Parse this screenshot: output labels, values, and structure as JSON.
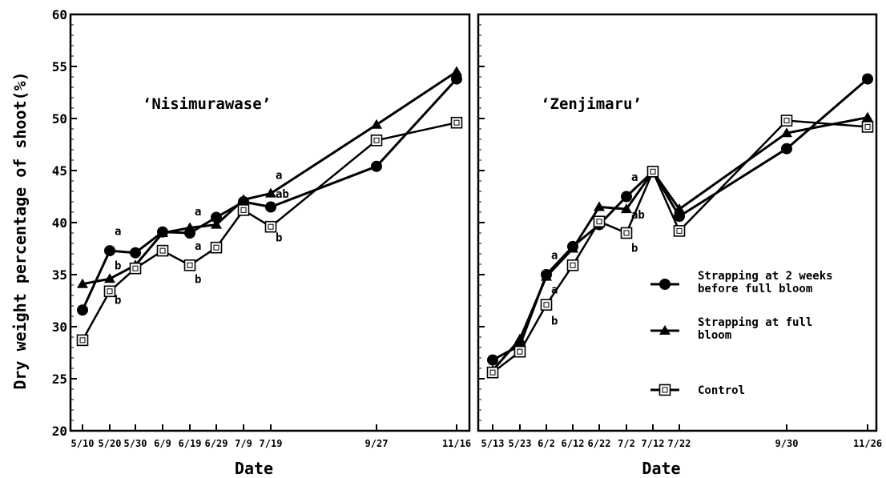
{
  "ylabel": "Dry weight percentage of shoot(%)",
  "chart_data": [
    {
      "type": "line",
      "title": "‘Nisimurawase’",
      "xlabel": "Date",
      "ylabel": "Dry weight percentage of shoot(%)",
      "ylim": [
        20,
        60
      ],
      "yticks": [
        20,
        25,
        30,
        35,
        40,
        45,
        50,
        55,
        60
      ],
      "xticks": [
        "5/10",
        "5/20",
        "5/30",
        "6/9",
        "6/19",
        "6/29",
        "7/9",
        "7/19",
        "9/27",
        "11/16"
      ],
      "x": [
        "5/10",
        "5/20",
        "5/30",
        "6/9",
        "6/19",
        "6/29",
        "7/9",
        "7/19",
        "9/27",
        "11/16"
      ],
      "series": [
        {
          "name": "Strapping at 2 weeks before full bloom",
          "marker": "circle",
          "values": [
            31.6,
            37.3,
            37.1,
            39.1,
            39.0,
            40.5,
            42.0,
            41.5,
            45.4,
            53.8
          ]
        },
        {
          "name": "Strapping at full bloom",
          "marker": "triangle",
          "values": [
            34.1,
            34.6,
            35.9,
            39.0,
            39.5,
            39.8,
            42.2,
            42.8,
            49.4,
            54.5
          ]
        },
        {
          "name": "Control",
          "marker": "square",
          "values": [
            28.7,
            33.4,
            35.6,
            37.3,
            35.9,
            37.6,
            41.2,
            39.6,
            47.9,
            49.6
          ]
        }
      ],
      "annotations": [
        {
          "text": "a",
          "x": "5/20",
          "y": 38.8
        },
        {
          "text": "b",
          "x": "5/20",
          "y": 35.5
        },
        {
          "text": "b",
          "x": "5/20",
          "y": 32.2
        },
        {
          "text": "a",
          "x": "6/19",
          "y": 40.7
        },
        {
          "text": "a",
          "x": "6/19",
          "y": 37.4
        },
        {
          "text": "b",
          "x": "6/19",
          "y": 34.2
        },
        {
          "text": "a",
          "x": "7/19",
          "y": 44.2
        },
        {
          "text": "ab",
          "x": "7/19",
          "y": 42.4
        },
        {
          "text": "b",
          "x": "7/19",
          "y": 38.2
        }
      ]
    },
    {
      "type": "line",
      "title": "‘Zenjimaru’",
      "xlabel": "Date",
      "ylim": [
        20,
        60
      ],
      "xticks": [
        "5/13",
        "5/23",
        "6/2",
        "6/12",
        "6/22",
        "7/2",
        "7/12",
        "7/22",
        "9/30",
        "11/26"
      ],
      "x": [
        "5/13",
        "5/23",
        "6/2",
        "6/12",
        "6/22",
        "7/2",
        "7/12",
        "7/22",
        "9/30",
        "11/26"
      ],
      "series": [
        {
          "name": "Strapping at 2 weeks before full bloom",
          "marker": "circle",
          "values": [
            26.8,
            28.2,
            35.0,
            37.7,
            39.8,
            42.5,
            44.9,
            40.6,
            47.1,
            53.8
          ]
        },
        {
          "name": "Strapping at full bloom",
          "marker": "triangle",
          "values": [
            25.8,
            28.8,
            34.8,
            37.5,
            41.5,
            41.3,
            44.9,
            41.3,
            48.6,
            50.1
          ]
        },
        {
          "name": "Control",
          "marker": "square",
          "values": [
            25.6,
            27.6,
            32.1,
            35.9,
            40.1,
            39.0,
            44.9,
            39.2,
            49.8,
            49.2
          ]
        }
      ],
      "annotations": [
        {
          "text": "a",
          "x": "6/2",
          "y": 36.5
        },
        {
          "text": "a",
          "x": "6/2",
          "y": 33.2
        },
        {
          "text": "b",
          "x": "6/2",
          "y": 30.2
        },
        {
          "text": "a",
          "x": "7/2",
          "y": 44.0
        },
        {
          "text": "ab",
          "x": "7/2",
          "y": 40.4
        },
        {
          "text": "b",
          "x": "7/2",
          "y": 37.2
        }
      ]
    }
  ],
  "legend": {
    "placement": "right-middle of right panel",
    "items": [
      {
        "marker": "circle",
        "label": "Strapping at 2 weeks before full bloom",
        "lines": [
          "Strapping at 2 weeks",
          "before full bloom"
        ]
      },
      {
        "marker": "triangle",
        "label": "Strapping at full bloom",
        "lines": [
          "Strapping at full",
          "bloom"
        ]
      },
      {
        "marker": "square",
        "label": "Control",
        "lines": [
          "Control"
        ]
      }
    ]
  }
}
